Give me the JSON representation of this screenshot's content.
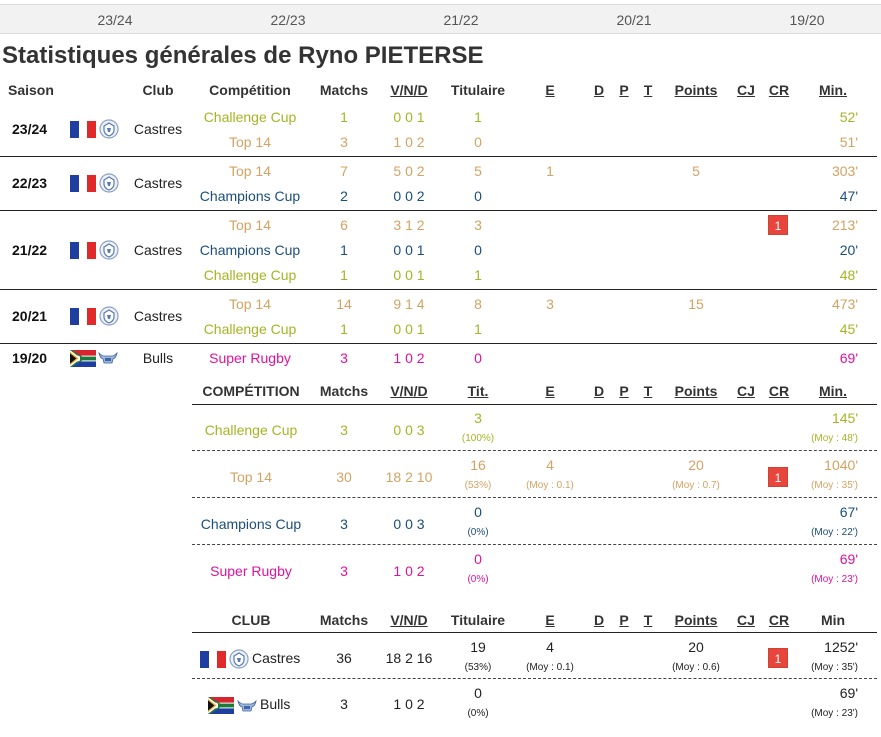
{
  "season_tabs": [
    "23/24",
    "22/23",
    "21/22",
    "20/21",
    "19/20"
  ],
  "page_title": "Statistiques générales de Ryno PIETERSE",
  "colors": {
    "challenge_cup": "#a4b523",
    "top_14": "#d4a262",
    "champions_cup": "#1b4e7a",
    "super_rugby": "#e0119c",
    "red_card": "#e8453c"
  },
  "season_table": {
    "headers": {
      "saison": "Saison",
      "club": "Club",
      "competition": "Compétition",
      "matchs": "Matchs",
      "vnd": "V/N/D",
      "titulaire": "Titulaire",
      "e": "E",
      "d": "D",
      "p": "P",
      "t": "T",
      "points": "Points",
      "cj": "CJ",
      "cr": "CR",
      "min": "Min."
    },
    "seasons": [
      {
        "season": "23/24",
        "club": "Castres",
        "country": "france",
        "rows": [
          {
            "comp": "Challenge Cup",
            "key": "chal",
            "matchs": "1",
            "vnd": "0 0 1",
            "tit": "1",
            "e": "",
            "points": "",
            "cr": "",
            "min": "52'"
          },
          {
            "comp": "Top 14",
            "key": "top",
            "matchs": "3",
            "vnd": "1 0 2",
            "tit": "0",
            "e": "",
            "points": "",
            "cr": "",
            "min": "51'"
          }
        ]
      },
      {
        "season": "22/23",
        "club": "Castres",
        "country": "france",
        "rows": [
          {
            "comp": "Top 14",
            "key": "top",
            "matchs": "7",
            "vnd": "5 0 2",
            "tit": "5",
            "e": "1",
            "points": "5",
            "cr": "",
            "min": "303'"
          },
          {
            "comp": "Champions Cup",
            "key": "champ",
            "matchs": "2",
            "vnd": "0 0 2",
            "tit": "0",
            "e": "",
            "points": "",
            "cr": "",
            "min": "47'"
          }
        ]
      },
      {
        "season": "21/22",
        "club": "Castres",
        "country": "france",
        "rows": [
          {
            "comp": "Top 14",
            "key": "top",
            "matchs": "6",
            "vnd": "3 1 2",
            "tit": "3",
            "e": "",
            "points": "",
            "cr": "1",
            "min": "213'"
          },
          {
            "comp": "Champions Cup",
            "key": "champ",
            "matchs": "1",
            "vnd": "0 0 1",
            "tit": "0",
            "e": "",
            "points": "",
            "cr": "",
            "min": "20'"
          },
          {
            "comp": "Challenge Cup",
            "key": "chal",
            "matchs": "1",
            "vnd": "0 0 1",
            "tit": "1",
            "e": "",
            "points": "",
            "cr": "",
            "min": "48'"
          }
        ]
      },
      {
        "season": "20/21",
        "club": "Castres",
        "country": "france",
        "rows": [
          {
            "comp": "Top 14",
            "key": "top",
            "matchs": "14",
            "vnd": "9 1 4",
            "tit": "8",
            "e": "3",
            "points": "15",
            "cr": "",
            "min": "473'"
          },
          {
            "comp": "Challenge Cup",
            "key": "chal",
            "matchs": "1",
            "vnd": "0 0 1",
            "tit": "1",
            "e": "",
            "points": "",
            "cr": "",
            "min": "45'"
          }
        ]
      },
      {
        "season": "19/20",
        "club": "Bulls",
        "country": "south-africa",
        "rows": [
          {
            "comp": "Super Rugby",
            "key": "super",
            "matchs": "3",
            "vnd": "1 0 2",
            "tit": "0",
            "e": "",
            "points": "",
            "cr": "",
            "min": "69'"
          }
        ]
      }
    ]
  },
  "competition_table": {
    "headers": {
      "competition": "COMPÉTITION",
      "matchs": "Matchs",
      "vnd": "V/N/D",
      "tit": "Tit.",
      "e": "E",
      "d": "D",
      "p": "P",
      "t": "T",
      "points": "Points",
      "cj": "CJ",
      "cr": "CR",
      "min": "Min."
    },
    "rows": [
      {
        "comp": "Challenge Cup",
        "key": "chal",
        "matchs": "3",
        "vnd": "0 0 3",
        "tit": "3",
        "tit_pct": "(100%)",
        "e": "",
        "e_moy": "",
        "points": "",
        "points_moy": "",
        "cr": "",
        "min": "145'",
        "min_moy": "(Moy : 48')"
      },
      {
        "comp": "Top 14",
        "key": "top",
        "matchs": "30",
        "vnd": "18 2 10",
        "tit": "16",
        "tit_pct": "(53%)",
        "e": "4",
        "e_moy": "(Moy : 0.1)",
        "points": "20",
        "points_moy": "(Moy : 0.7)",
        "cr": "1",
        "min": "1040'",
        "min_moy": "(Moy : 35')"
      },
      {
        "comp": "Champions Cup",
        "key": "champ",
        "matchs": "3",
        "vnd": "0 0 3",
        "tit": "0",
        "tit_pct": "(0%)",
        "e": "",
        "e_moy": "",
        "points": "",
        "points_moy": "",
        "cr": "",
        "min": "67'",
        "min_moy": "(Moy : 22')"
      },
      {
        "comp": "Super Rugby",
        "key": "super",
        "matchs": "3",
        "vnd": "1 0 2",
        "tit": "0",
        "tit_pct": "(0%)",
        "e": "",
        "e_moy": "",
        "points": "",
        "points_moy": "",
        "cr": "",
        "min": "69'",
        "min_moy": "(Moy : 23')"
      }
    ]
  },
  "club_table": {
    "headers": {
      "club": "CLUB",
      "matchs": "Matchs",
      "vnd": "V/N/D",
      "titulaire": "Titulaire",
      "e": "E",
      "d": "D",
      "p": "P",
      "t": "T",
      "points": "Points",
      "cj": "CJ",
      "cr": "CR",
      "min": "Min"
    },
    "rows": [
      {
        "club": "Castres",
        "country": "france",
        "matchs": "36",
        "vnd": "18 2 16",
        "tit": "19",
        "tit_pct": "(53%)",
        "e": "4",
        "e_moy": "(Moy : 0.1)",
        "points": "20",
        "points_moy": "(Moy : 0.6)",
        "cr": "1",
        "min": "1252'",
        "min_moy": "(Moy : 35')"
      },
      {
        "club": "Bulls",
        "country": "south-africa",
        "matchs": "3",
        "vnd": "1 0 2",
        "tit": "0",
        "tit_pct": "(0%)",
        "e": "",
        "e_moy": "",
        "points": "",
        "points_moy": "",
        "cr": "",
        "min": "69'",
        "min_moy": "(Moy : 23')"
      }
    ]
  }
}
